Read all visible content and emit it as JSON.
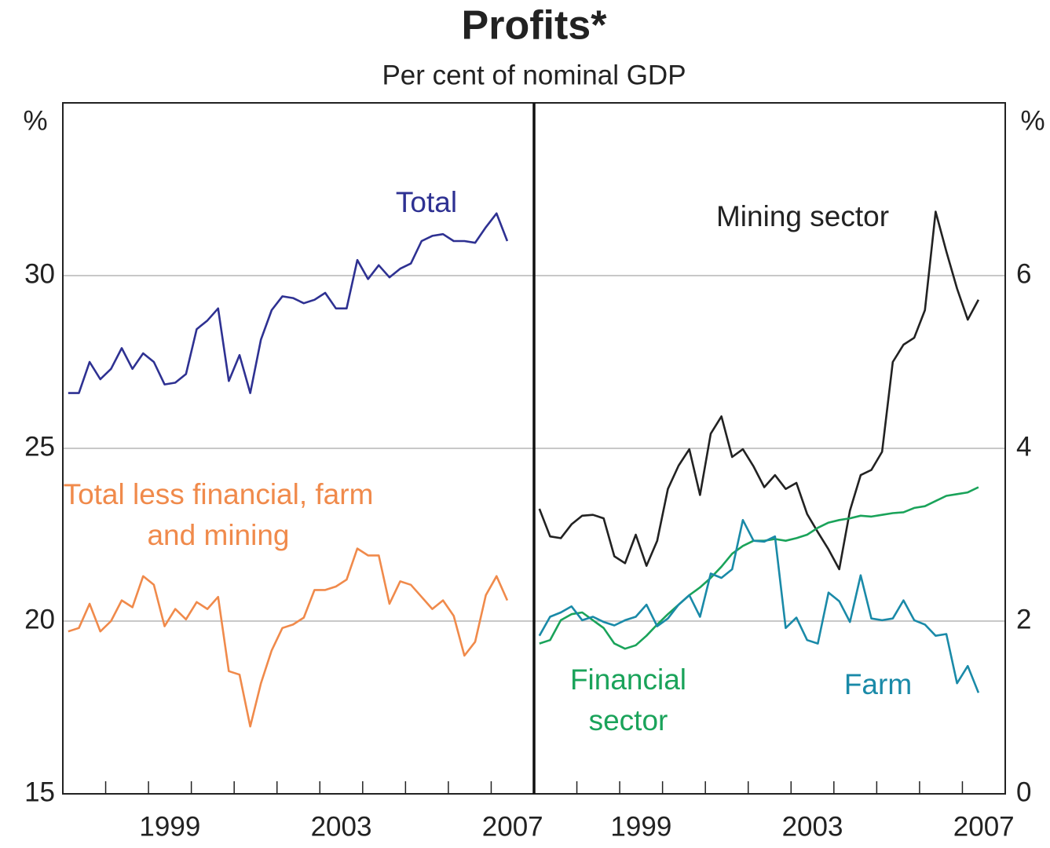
{
  "title": "Profits*",
  "subtitle": "Per cent of nominal GDP",
  "chart_data": [
    {
      "type": "line",
      "ylabel": "%",
      "yaxis_side": "left",
      "xlim": [
        1997,
        2008
      ],
      "xticks": [
        {
          "value": 1999.5,
          "label": "1999"
        },
        {
          "value": 2003.5,
          "label": "2003"
        },
        {
          "value": 2007.5,
          "label": "2007"
        }
      ],
      "xminor_ticks": [
        1998,
        1999,
        2000,
        2001,
        2002,
        2003,
        2004,
        2005,
        2006,
        2007
      ],
      "ylim": [
        15,
        35
      ],
      "yticks": [
        15,
        20,
        25,
        30
      ],
      "grid": true,
      "x": [
        1997.125,
        1997.375,
        1997.625,
        1997.875,
        1998.125,
        1998.375,
        1998.625,
        1998.875,
        1999.125,
        1999.375,
        1999.625,
        1999.875,
        2000.125,
        2000.375,
        2000.625,
        2000.875,
        2001.125,
        2001.375,
        2001.625,
        2001.875,
        2002.125,
        2002.375,
        2002.625,
        2002.875,
        2003.125,
        2003.375,
        2003.625,
        2003.875,
        2004.125,
        2004.375,
        2004.625,
        2004.875,
        2005.125,
        2005.375,
        2005.625,
        2005.875,
        2006.125,
        2006.375,
        2006.625,
        2006.875,
        2007.125,
        2007.375
      ],
      "series": [
        {
          "name": "Total",
          "color": "#2e3192",
          "values": [
            26.6,
            26.6,
            27.5,
            27.0,
            27.3,
            27.9,
            27.3,
            27.75,
            27.5,
            26.85,
            26.9,
            27.15,
            28.45,
            28.7,
            29.05,
            26.95,
            27.7,
            26.6,
            28.15,
            29.0,
            29.4,
            29.35,
            29.2,
            29.3,
            29.5,
            29.05,
            29.05,
            30.45,
            29.9,
            30.3,
            29.95,
            30.2,
            30.35,
            31.0,
            31.15,
            31.2,
            31.0,
            31.0,
            30.95,
            31.4,
            31.8,
            31.0
          ]
        },
        {
          "name": "Total less financial, farm and mining",
          "color": "#f08a4b",
          "values": [
            19.7,
            19.8,
            20.5,
            19.7,
            20.0,
            20.6,
            20.4,
            21.3,
            21.05,
            19.85,
            20.35,
            20.05,
            20.55,
            20.35,
            20.7,
            18.55,
            18.45,
            16.95,
            18.2,
            19.15,
            19.8,
            19.9,
            20.1,
            20.9,
            20.9,
            21.0,
            21.2,
            22.1,
            21.9,
            21.9,
            20.5,
            21.15,
            21.05,
            20.7,
            20.35,
            20.6,
            20.15,
            19.0,
            19.4,
            20.75,
            21.3,
            20.6
          ]
        }
      ]
    },
    {
      "type": "line",
      "ylabel": "%",
      "yaxis_side": "right",
      "xlim": [
        1997,
        2008
      ],
      "xticks": [
        {
          "value": 1999.5,
          "label": "1999"
        },
        {
          "value": 2003.5,
          "label": "2003"
        },
        {
          "value": 2007.5,
          "label": "2007"
        }
      ],
      "xminor_ticks": [
        1998,
        1999,
        2000,
        2001,
        2002,
        2003,
        2004,
        2005,
        2006,
        2007
      ],
      "ylim": [
        0,
        8
      ],
      "yticks": [
        0,
        2,
        4,
        6
      ],
      "grid": true,
      "x": [
        1997.125,
        1997.375,
        1997.625,
        1997.875,
        1998.125,
        1998.375,
        1998.625,
        1998.875,
        1999.125,
        1999.375,
        1999.625,
        1999.875,
        2000.125,
        2000.375,
        2000.625,
        2000.875,
        2001.125,
        2001.375,
        2001.625,
        2001.875,
        2002.125,
        2002.375,
        2002.625,
        2002.875,
        2003.125,
        2003.375,
        2003.625,
        2003.875,
        2004.125,
        2004.375,
        2004.625,
        2004.875,
        2005.125,
        2005.375,
        2005.625,
        2005.875,
        2006.125,
        2006.375,
        2006.625,
        2006.875,
        2007.125,
        2007.375
      ],
      "series": [
        {
          "name": "Mining sector",
          "color": "#222222",
          "values": [
            3.3,
            2.98,
            2.96,
            3.12,
            3.22,
            3.23,
            3.19,
            2.75,
            2.67,
            3.0,
            2.64,
            2.93,
            3.53,
            3.8,
            3.99,
            3.46,
            4.17,
            4.37,
            3.9,
            3.99,
            3.79,
            3.55,
            3.69,
            3.53,
            3.6,
            3.24,
            3.03,
            2.83,
            2.6,
            3.28,
            3.69,
            3.75,
            3.96,
            5.0,
            5.2,
            5.28,
            5.6,
            6.74,
            6.28,
            5.85,
            5.49,
            5.72
          ]
        },
        {
          "name": "Financial sector",
          "color": "#1aa35a",
          "values": [
            1.74,
            1.78,
            2.01,
            2.08,
            2.1,
            2.01,
            1.92,
            1.74,
            1.68,
            1.72,
            1.83,
            1.96,
            2.08,
            2.19,
            2.3,
            2.39,
            2.5,
            2.63,
            2.78,
            2.87,
            2.93,
            2.93,
            2.95,
            2.93,
            2.96,
            3.0,
            3.08,
            3.14,
            3.17,
            3.19,
            3.22,
            3.21,
            3.23,
            3.25,
            3.26,
            3.31,
            3.33,
            3.39,
            3.45,
            3.47,
            3.49,
            3.55
          ]
        },
        {
          "name": "Farm",
          "color": "#1a8aa8",
          "values": [
            1.83,
            2.05,
            2.1,
            2.17,
            2.01,
            2.05,
            1.99,
            1.95,
            2.01,
            2.05,
            2.19,
            1.94,
            2.03,
            2.19,
            2.3,
            2.05,
            2.55,
            2.5,
            2.6,
            3.17,
            2.93,
            2.92,
            2.98,
            1.92,
            2.04,
            1.78,
            1.74,
            2.33,
            2.23,
            1.99,
            2.53,
            2.03,
            2.01,
            2.03,
            2.24,
            2.01,
            1.96,
            1.83,
            1.85,
            1.28,
            1.48,
            1.17
          ]
        }
      ]
    }
  ]
}
